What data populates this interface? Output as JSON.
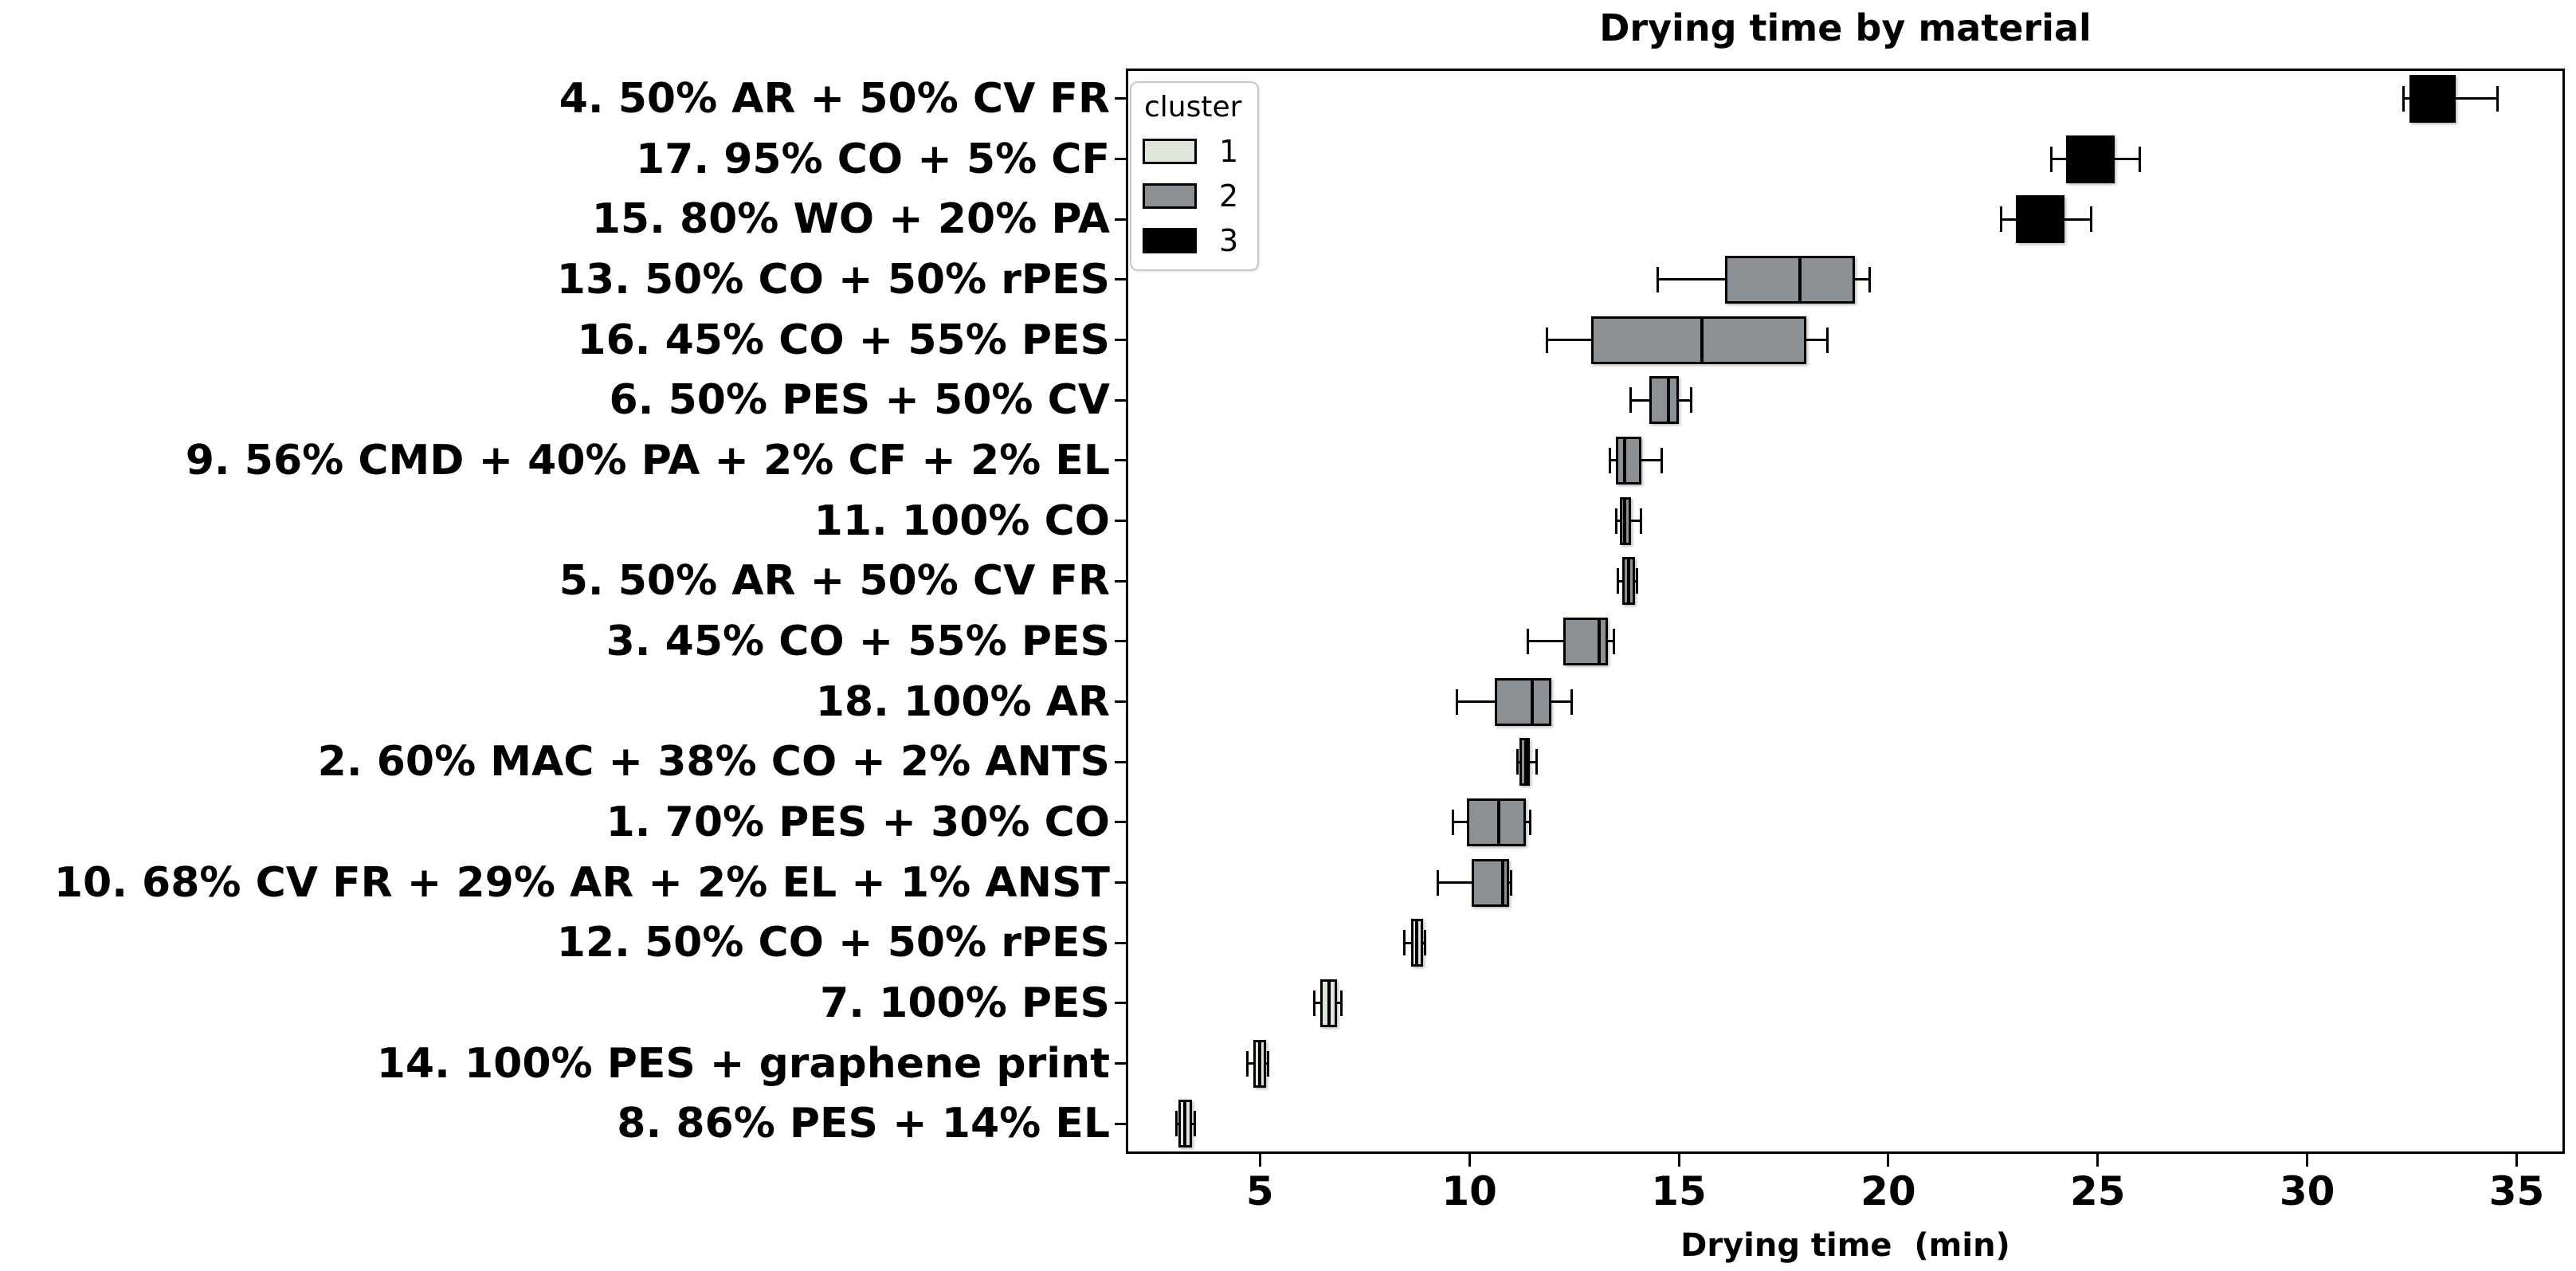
{
  "chart_data": {
    "type": "boxplot",
    "orientation": "horizontal",
    "title": "Drying time by material",
    "xlabel": "Drying time  (min)",
    "xlim": [
      1.8,
      36.15
    ],
    "xticks": [
      5,
      10,
      15,
      20,
      25,
      30,
      35
    ],
    "grid": false,
    "legend": {
      "title": "cluster",
      "position": "upper left",
      "entries": [
        {
          "label": "1",
          "color": "#dce7d9"
        },
        {
          "label": "2",
          "color": "#8a9093"
        },
        {
          "label": "3",
          "color": "#000000"
        }
      ]
    },
    "colors": {
      "cluster1": "#dce7d9",
      "cluster2": "#8a9093",
      "cluster3": "#000000",
      "box_edge": "#000000",
      "background": "#ffffff"
    },
    "rows": [
      {
        "label": "4. 50% AR + 50% CV FR",
        "cluster": 3,
        "whisker_low": 32.3,
        "q1": 32.45,
        "median": 33.0,
        "q3": 33.55,
        "whisker_high": 34.55
      },
      {
        "label": "17. 95% CO + 5% CF",
        "cluster": 3,
        "whisker_low": 23.9,
        "q1": 24.25,
        "median": 24.8,
        "q3": 25.4,
        "whisker_high": 26.0
      },
      {
        "label": "15. 80% WO + 20% PA",
        "cluster": 3,
        "whisker_low": 22.7,
        "q1": 23.05,
        "median": 23.6,
        "q3": 24.2,
        "whisker_high": 24.85
      },
      {
        "label": "13. 50% CO + 50% rPES",
        "cluster": 2,
        "whisker_low": 14.5,
        "q1": 16.1,
        "median": 17.9,
        "q3": 19.2,
        "whisker_high": 19.55
      },
      {
        "label": "16. 45% CO + 55% PES",
        "cluster": 2,
        "whisker_low": 11.85,
        "q1": 12.9,
        "median": 15.55,
        "q3": 18.05,
        "whisker_high": 18.55
      },
      {
        "label": "6. 50% PES + 50% CV",
        "cluster": 2,
        "whisker_low": 13.85,
        "q1": 14.3,
        "median": 14.75,
        "q3": 15.0,
        "whisker_high": 15.3
      },
      {
        "label": "9. 56% CMD + 40% PA + 2% CF + 2% EL",
        "cluster": 2,
        "whisker_low": 13.35,
        "q1": 13.5,
        "median": 13.7,
        "q3": 14.1,
        "whisker_high": 14.6
      },
      {
        "label": "11. 100% CO",
        "cluster": 2,
        "whisker_low": 13.5,
        "q1": 13.6,
        "median": 13.7,
        "q3": 13.85,
        "whisker_high": 14.1
      },
      {
        "label": "5. 50% AR + 50% CV FR",
        "cluster": 2,
        "whisker_low": 13.55,
        "q1": 13.65,
        "median": 13.8,
        "q3": 13.95,
        "whisker_high": 14.0
      },
      {
        "label": "3. 45% CO + 55% PES",
        "cluster": 2,
        "whisker_low": 11.4,
        "q1": 12.25,
        "median": 13.1,
        "q3": 13.3,
        "whisker_high": 13.45
      },
      {
        "label": "18. 100% AR",
        "cluster": 2,
        "whisker_low": 9.7,
        "q1": 10.6,
        "median": 11.5,
        "q3": 11.95,
        "whisker_high": 12.45
      },
      {
        "label": "2. 60% MAC + 38% CO + 2% ANTS",
        "cluster": 2,
        "whisker_low": 11.15,
        "q1": 11.2,
        "median": 11.35,
        "q3": 11.45,
        "whisker_high": 11.6
      },
      {
        "label": "1. 70% PES + 30% CO",
        "cluster": 2,
        "whisker_low": 9.6,
        "q1": 9.95,
        "median": 10.7,
        "q3": 11.35,
        "whisker_high": 11.45
      },
      {
        "label": "10. 68% CV FR + 29% AR + 2% EL + 1% ANST",
        "cluster": 2,
        "whisker_low": 9.25,
        "q1": 10.05,
        "median": 10.8,
        "q3": 10.95,
        "whisker_high": 11.0
      },
      {
        "label": "12. 50% CO + 50% rPES",
        "cluster": 1,
        "whisker_low": 8.45,
        "q1": 8.6,
        "median": 8.75,
        "q3": 8.9,
        "whisker_high": 8.95
      },
      {
        "label": "7. 100% PES",
        "cluster": 1,
        "whisker_low": 6.3,
        "q1": 6.45,
        "median": 6.65,
        "q3": 6.85,
        "whisker_high": 6.95
      },
      {
        "label": "14. 100% PES + graphene print",
        "cluster": 1,
        "whisker_low": 4.7,
        "q1": 4.85,
        "median": 5.0,
        "q3": 5.15,
        "whisker_high": 5.2
      },
      {
        "label": "8. 86% PES + 14% EL",
        "cluster": 1,
        "whisker_low": 3.0,
        "q1": 3.05,
        "median": 3.2,
        "q3": 3.38,
        "whisker_high": 3.45
      }
    ]
  }
}
